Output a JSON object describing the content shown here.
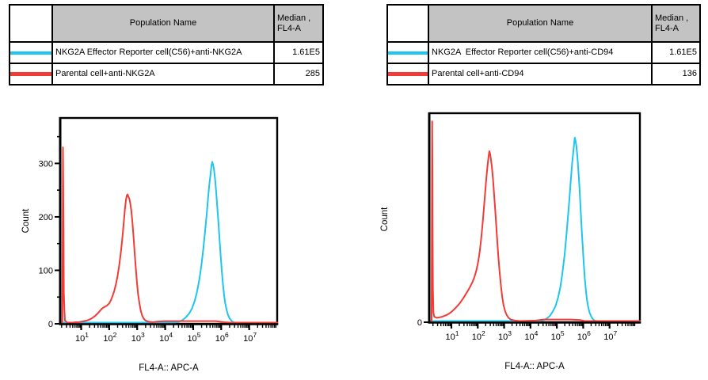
{
  "colors": {
    "cyan": "#1EC5F0",
    "red": "#F23B37",
    "table_header_bg": "#C3C3C3",
    "axis": "#000000"
  },
  "tables": {
    "left": {
      "header": {
        "population": "Population Name",
        "median_line1": "Median ,",
        "median_line2": "FL4-A"
      },
      "rows": [
        {
          "key": "effector",
          "swatch_color": "#1EC5F0",
          "name": "NKG2A Effector Reporter cell(C56)+anti-NKG2A",
          "median": "1.61E5"
        },
        {
          "key": "parental",
          "swatch_color": "#F23B37",
          "name": "Parental cell+anti-NKG2A",
          "median": "285"
        }
      ]
    },
    "right": {
      "header": {
        "population": "Population Name",
        "median_line1": "Median ,",
        "median_line2": "FL4-A"
      },
      "rows": [
        {
          "key": "effector",
          "swatch_color": "#1EC5F0",
          "name": "NKG2A  Effector Reporter cell(C56)+anti-CD94",
          "median": "1.61E5"
        },
        {
          "key": "parental",
          "swatch_color": "#F23B37",
          "name": "Parental cell+anti-CD94",
          "median": "136"
        }
      ]
    }
  },
  "chart_data": [
    {
      "id": "left",
      "type": "line",
      "title": "",
      "xlabel": "FL4-A:: APC-A",
      "ylabel": "Count",
      "x_scale": "biexponential-log10",
      "x_tick_base": "10",
      "x_tick_exponents": [
        1,
        2,
        3,
        4,
        5,
        6,
        7
      ],
      "xlim_exponents": [
        0.25,
        8.0
      ],
      "y_ticks": [
        0,
        100,
        200,
        300
      ],
      "y_minor_ticks": [
        50,
        150,
        250,
        350
      ],
      "ylim": [
        0,
        385
      ],
      "grid": false,
      "legend_position": "table-above",
      "series": [
        {
          "key": "effector",
          "name": "NKG2A Effector Reporter cell(C56)+anti-NKG2A",
          "color": "#1EC5F0",
          "median_fl4a": "1.61E5",
          "points": [
            [
              0.25,
              0
            ],
            [
              1.0,
              0
            ],
            [
              2.0,
              0
            ],
            [
              3.0,
              0
            ],
            [
              4.0,
              0
            ],
            [
              4.2,
              1
            ],
            [
              4.35,
              2
            ],
            [
              4.5,
              4
            ],
            [
              4.62,
              7
            ],
            [
              4.74,
              12
            ],
            [
              4.85,
              19
            ],
            [
              4.95,
              28
            ],
            [
              5.05,
              42
            ],
            [
              5.13,
              58
            ],
            [
              5.21,
              80
            ],
            [
              5.29,
              108
            ],
            [
              5.36,
              140
            ],
            [
              5.43,
              175
            ],
            [
              5.49,
              210
            ],
            [
              5.54,
              240
            ],
            [
              5.58,
              262
            ],
            [
              5.62,
              280
            ],
            [
              5.65,
              295
            ],
            [
              5.68,
              303
            ],
            [
              5.71,
              298
            ],
            [
              5.74,
              290
            ],
            [
              5.78,
              272
            ],
            [
              5.82,
              248
            ],
            [
              5.86,
              220
            ],
            [
              5.9,
              190
            ],
            [
              5.94,
              158
            ],
            [
              5.98,
              128
            ],
            [
              6.02,
              100
            ],
            [
              6.06,
              76
            ],
            [
              6.1,
              56
            ],
            [
              6.14,
              40
            ],
            [
              6.19,
              27
            ],
            [
              6.24,
              17
            ],
            [
              6.3,
              10
            ],
            [
              6.36,
              6
            ],
            [
              6.43,
              3
            ],
            [
              6.5,
              2
            ],
            [
              6.6,
              1
            ],
            [
              6.8,
              0
            ],
            [
              7.2,
              0
            ],
            [
              8.0,
              0
            ]
          ]
        },
        {
          "key": "parental",
          "name": "Parental cell+anti-NKG2A",
          "color": "#F23B37",
          "median_fl4a": "285",
          "points": [
            [
              0.33,
              0
            ],
            [
              0.35,
              330
            ],
            [
              0.36,
              248
            ],
            [
              0.37,
              172
            ],
            [
              0.38,
              60
            ],
            [
              0.4,
              27
            ],
            [
              0.42,
              6
            ],
            [
              0.5,
              2
            ],
            [
              0.6,
              2
            ],
            [
              0.7,
              2
            ],
            [
              0.8,
              3
            ],
            [
              0.9,
              3
            ],
            [
              1.0,
              4
            ],
            [
              1.1,
              5
            ],
            [
              1.2,
              6
            ],
            [
              1.3,
              8
            ],
            [
              1.4,
              11
            ],
            [
              1.5,
              15
            ],
            [
              1.6,
              20
            ],
            [
              1.7,
              26
            ],
            [
              1.78,
              30
            ],
            [
              1.85,
              32
            ],
            [
              1.92,
              34
            ],
            [
              2.0,
              38
            ],
            [
              2.06,
              44
            ],
            [
              2.12,
              52
            ],
            [
              2.18,
              61
            ],
            [
              2.24,
              74
            ],
            [
              2.3,
              90
            ],
            [
              2.36,
              110
            ],
            [
              2.42,
              135
            ],
            [
              2.47,
              160
            ],
            [
              2.52,
              190
            ],
            [
              2.56,
              214
            ],
            [
              2.6,
              232
            ],
            [
              2.63,
              240
            ],
            [
              2.66,
              242
            ],
            [
              2.69,
              237
            ],
            [
              2.72,
              234
            ],
            [
              2.75,
              226
            ],
            [
              2.79,
              212
            ],
            [
              2.83,
              190
            ],
            [
              2.87,
              163
            ],
            [
              2.91,
              133
            ],
            [
              2.95,
              104
            ],
            [
              2.99,
              78
            ],
            [
              3.03,
              56
            ],
            [
              3.08,
              38
            ],
            [
              3.13,
              24
            ],
            [
              3.18,
              15
            ],
            [
              3.24,
              9
            ],
            [
              3.3,
              6
            ],
            [
              3.4,
              4
            ],
            [
              3.55,
              3
            ],
            [
              3.7,
              4
            ],
            [
              4.0,
              5
            ],
            [
              4.5,
              5
            ],
            [
              5.0,
              5
            ],
            [
              5.5,
              5
            ],
            [
              5.8,
              5
            ],
            [
              6.1,
              3
            ],
            [
              6.3,
              1
            ],
            [
              6.6,
              1
            ],
            [
              8.0,
              1
            ]
          ]
        }
      ]
    },
    {
      "id": "right",
      "type": "line",
      "title": "",
      "xlabel": "FL4-A:: APC-A",
      "ylabel": "Count",
      "x_scale": "biexponential-log10",
      "x_tick_base": "10",
      "x_tick_exponents": [
        1,
        2,
        3,
        4,
        5,
        6,
        7
      ],
      "xlim_exponents": [
        0.16,
        8.15
      ],
      "y_ticks": [
        0
      ],
      "y_minor_ticks": [],
      "ylim": [
        0,
        385
      ],
      "grid": false,
      "legend_position": "table-above",
      "series": [
        {
          "key": "effector",
          "name": "NKG2A  Effector Reporter cell(C56)+anti-CD94",
          "color": "#1EC5F0",
          "median_fl4a": "1.61E5",
          "points": [
            [
              0.16,
              0
            ],
            [
              1.0,
              0
            ],
            [
              2.0,
              0
            ],
            [
              3.0,
              0
            ],
            [
              4.0,
              0
            ],
            [
              4.2,
              1
            ],
            [
              4.35,
              2
            ],
            [
              4.5,
              4
            ],
            [
              4.62,
              7
            ],
            [
              4.74,
              12
            ],
            [
              4.85,
              20
            ],
            [
              4.95,
              30
            ],
            [
              5.05,
              46
            ],
            [
              5.13,
              64
            ],
            [
              5.21,
              90
            ],
            [
              5.29,
              122
            ],
            [
              5.36,
              158
            ],
            [
              5.43,
              198
            ],
            [
              5.49,
              235
            ],
            [
              5.54,
              268
            ],
            [
              5.58,
              292
            ],
            [
              5.62,
              312
            ],
            [
              5.65,
              327
            ],
            [
              5.68,
              340
            ],
            [
              5.71,
              334
            ],
            [
              5.74,
              324
            ],
            [
              5.78,
              305
            ],
            [
              5.82,
              278
            ],
            [
              5.86,
              246
            ],
            [
              5.9,
              210
            ],
            [
              5.94,
              174
            ],
            [
              5.98,
              140
            ],
            [
              6.02,
              108
            ],
            [
              6.06,
              81
            ],
            [
              6.1,
              59
            ],
            [
              6.14,
              42
            ],
            [
              6.19,
              28
            ],
            [
              6.24,
              18
            ],
            [
              6.3,
              11
            ],
            [
              6.36,
              6
            ],
            [
              6.43,
              3
            ],
            [
              6.5,
              2
            ],
            [
              6.6,
              1
            ],
            [
              6.8,
              0
            ],
            [
              7.2,
              0
            ],
            [
              8.15,
              0
            ]
          ]
        },
        {
          "key": "parental",
          "name": "Parental cell+anti-CD94",
          "color": "#F23B37",
          "median_fl4a": "136",
          "points": [
            [
              0.25,
              0
            ],
            [
              0.27,
              370
            ],
            [
              0.28,
              300
            ],
            [
              0.29,
              150
            ],
            [
              0.3,
              60
            ],
            [
              0.32,
              18
            ],
            [
              0.35,
              10
            ],
            [
              0.45,
              8
            ],
            [
              0.55,
              9
            ],
            [
              0.65,
              10
            ],
            [
              0.75,
              12
            ],
            [
              0.85,
              14
            ],
            [
              0.95,
              17
            ],
            [
              1.05,
              21
            ],
            [
              1.15,
              26
            ],
            [
              1.25,
              31
            ],
            [
              1.35,
              37
            ],
            [
              1.45,
              44
            ],
            [
              1.55,
              52
            ],
            [
              1.65,
              60
            ],
            [
              1.72,
              66
            ],
            [
              1.8,
              74
            ],
            [
              1.88,
              84
            ],
            [
              1.95,
              96
            ],
            [
              2.02,
              112
            ],
            [
              2.08,
              132
            ],
            [
              2.14,
              158
            ],
            [
              2.2,
              190
            ],
            [
              2.26,
              226
            ],
            [
              2.32,
              262
            ],
            [
              2.37,
              288
            ],
            [
              2.41,
              305
            ],
            [
              2.44,
              315
            ],
            [
              2.47,
              310
            ],
            [
              2.5,
              300
            ],
            [
              2.54,
              285
            ],
            [
              2.58,
              262
            ],
            [
              2.63,
              230
            ],
            [
              2.68,
              194
            ],
            [
              2.73,
              156
            ],
            [
              2.78,
              122
            ],
            [
              2.83,
              92
            ],
            [
              2.88,
              66
            ],
            [
              2.93,
              46
            ],
            [
              2.98,
              31
            ],
            [
              3.04,
              20
            ],
            [
              3.1,
              13
            ],
            [
              3.17,
              8
            ],
            [
              3.25,
              5
            ],
            [
              3.4,
              3
            ],
            [
              3.6,
              2
            ],
            [
              4.2,
              3
            ],
            [
              4.5,
              5
            ],
            [
              5.0,
              5
            ],
            [
              5.5,
              5
            ],
            [
              5.9,
              4
            ],
            [
              6.05,
              2
            ],
            [
              6.3,
              1
            ],
            [
              6.6,
              1
            ],
            [
              8.15,
              1
            ]
          ]
        }
      ]
    }
  ]
}
